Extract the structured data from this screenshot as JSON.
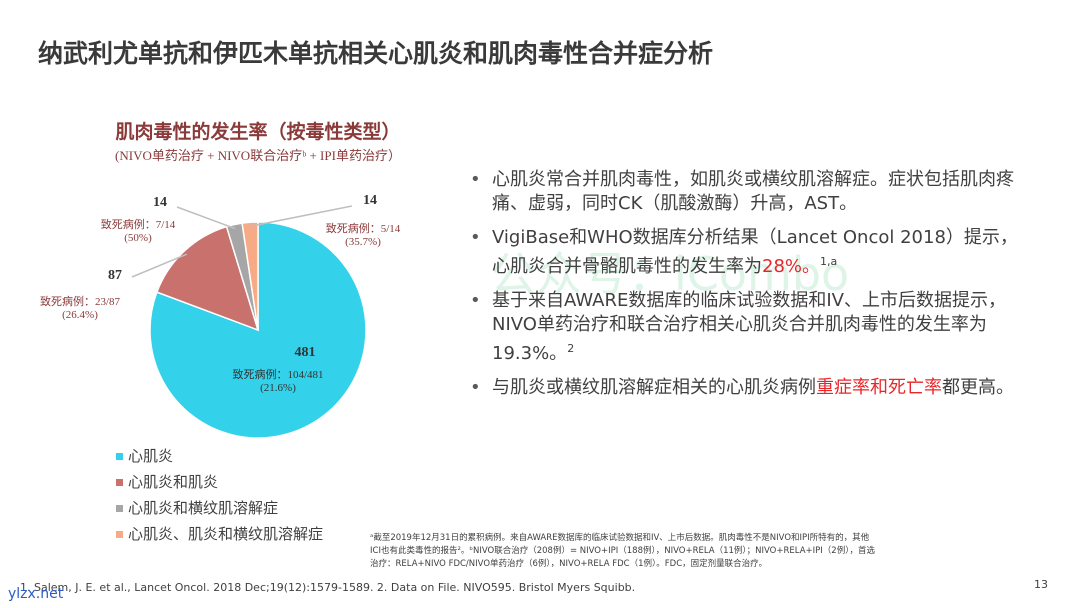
{
  "title": "纳武利尤单抗和伊匹木单抗相关心肌炎和肌肉毒性合并症分析",
  "chart_data": {
    "type": "pie",
    "title": "肌肉毒性的发生率（按毒性类型）",
    "subtitle": "(NIVO单药治疗 + NIVO联合治疗ᵇ + IPI单药治疗）",
    "categories": [
      "心肌炎",
      "心肌炎和肌炎",
      "心肌炎和横纹肌溶解症",
      "心肌炎、肌炎和横纹肌溶解症"
    ],
    "values": [
      481,
      87,
      14,
      14
    ],
    "colors": [
      "#33d1ea",
      "#c9716d",
      "#a6a6a6",
      "#f7aa86"
    ],
    "fatal_cases": [
      "致死病例：104/481",
      "致死病例：23/87",
      "致死病例：7/14",
      "致死病例：5/14"
    ],
    "fatal_rates": [
      "(21.6%)",
      "(26.4%)",
      "(50%)",
      "(35.7%)"
    ]
  },
  "bullets": [
    [
      {
        "text": "心肌炎常合并肌肉毒性，如肌炎或横纹肌溶解症。症状包括肌肉疼痛、虚弱，同时CK（肌酸激酶）升高，AST。"
      }
    ],
    [
      {
        "text": "VigiBase和WHO数据库分析结果（Lancet Oncol 2018）提示，心肌炎合并骨骼肌毒性的发生率为"
      },
      {
        "text": "28%。",
        "color": "#e8262a"
      },
      {
        "text": "1,a",
        "sup": true
      }
    ],
    [
      {
        "text": "基于来自AWARE数据库的临床试验数据和IV、上市后数据提示，NIVO单药治疗和联合治疗相关心肌炎合并肌肉毒性的发生率为19.3%。"
      },
      {
        "text": "2",
        "sup": true
      }
    ],
    [
      {
        "text": "与肌炎或横纹肌溶解症相关的心肌炎病例"
      },
      {
        "text": "重症率和死亡率",
        "color": "#e8262a"
      },
      {
        "text": "都更高。"
      }
    ]
  ],
  "notes": [
    "ᵃ截至2019年12月31日的累积病例。来自AWARE数据库的临床试验数据和IV、上市后数据。肌肉毒性不是NIVO和IPI所特有的，其他",
    "ICI也有此类毒性的报告²。ᵇNIVO联合治疗（208例）= NIVO+IPI（188例），NIVO+RELA（11例）；NIVO+RELA+IPI（2例），首选",
    "治疗：RELA+NIVO FDC/NIVO单药治疗（6例），NIVO+RELA FDC（1例）。FDC，固定剂量联合治疗。"
  ],
  "references": "1. Salem, J. E. et al., Lancet Oncol. 2018 Dec;19(12):1579-1589. 2. Data on File. NIVO595. Bristol Myers Squibb.",
  "page_number": "13",
  "watermark": "公众号：iCombo",
  "site_mark": "ylzx.net"
}
